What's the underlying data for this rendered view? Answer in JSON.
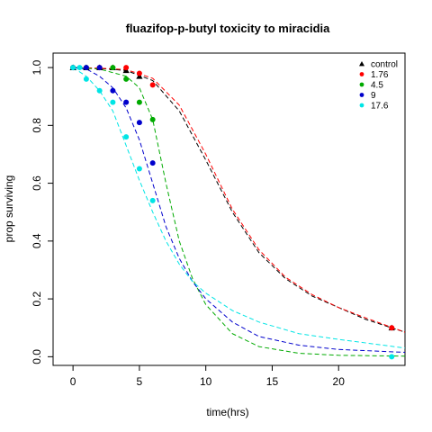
{
  "chart_data": {
    "type": "scatter",
    "title": "fluazifop-p-butyl toxicity to miracidia",
    "xlabel": "time(hrs)",
    "ylabel": "prop surviving",
    "xlim": [
      -1.5,
      25
    ],
    "ylim": [
      -0.03,
      1.05
    ],
    "xticks": [
      0,
      5,
      10,
      15,
      20
    ],
    "yticks": [
      0.0,
      0.2,
      0.4,
      0.6,
      0.8,
      1.0
    ],
    "xtick_labels": [
      "0",
      "5",
      "10",
      "15",
      "20"
    ],
    "ytick_labels": [
      "0.0",
      "0.2",
      "0.4",
      "0.6",
      "0.8",
      "1.0"
    ],
    "grid": false,
    "legend_position": "top-right",
    "series": [
      {
        "name": "control",
        "color": "#000000",
        "marker": "triangle",
        "points": [
          [
            0,
            1.0
          ],
          [
            1,
            1.0
          ],
          [
            2,
            1.0
          ],
          [
            3,
            1.0
          ],
          [
            4,
            0.99
          ],
          [
            5,
            0.97
          ],
          [
            24,
            0.1
          ]
        ],
        "curve": [
          [
            0,
            1.0
          ],
          [
            2,
            0.997
          ],
          [
            4,
            0.99
          ],
          [
            6,
            0.955
          ],
          [
            8,
            0.85
          ],
          [
            10,
            0.68
          ],
          [
            12,
            0.5
          ],
          [
            14,
            0.36
          ],
          [
            16,
            0.27
          ],
          [
            18,
            0.21
          ],
          [
            20,
            0.17
          ],
          [
            22,
            0.13
          ],
          [
            25,
            0.085
          ]
        ]
      },
      {
        "name": "1.76",
        "color": "#ff0000",
        "marker": "circle",
        "points": [
          [
            0,
            1.0
          ],
          [
            2,
            1.0
          ],
          [
            4,
            1.0
          ],
          [
            5,
            0.98
          ],
          [
            6,
            0.94
          ],
          [
            24,
            0.1
          ]
        ],
        "curve": [
          [
            0,
            1.0
          ],
          [
            2,
            0.998
          ],
          [
            4,
            0.993
          ],
          [
            6,
            0.963
          ],
          [
            8,
            0.87
          ],
          [
            10,
            0.7
          ],
          [
            12,
            0.51
          ],
          [
            14,
            0.37
          ],
          [
            16,
            0.275
          ],
          [
            18,
            0.215
          ],
          [
            20,
            0.17
          ],
          [
            22,
            0.135
          ],
          [
            25,
            0.085
          ]
        ]
      },
      {
        "name": "4.5",
        "color": "#00aa00",
        "marker": "circle",
        "points": [
          [
            0,
            1.0
          ],
          [
            1,
            1.0
          ],
          [
            3,
            1.0
          ],
          [
            4,
            0.96
          ],
          [
            5,
            0.88
          ],
          [
            6,
            0.82
          ]
        ],
        "curve": [
          [
            0,
            1.0
          ],
          [
            2,
            0.995
          ],
          [
            4,
            0.97
          ],
          [
            5,
            0.93
          ],
          [
            6,
            0.82
          ],
          [
            7,
            0.6
          ],
          [
            8,
            0.4
          ],
          [
            9,
            0.27
          ],
          [
            10,
            0.18
          ],
          [
            12,
            0.08
          ],
          [
            14,
            0.035
          ],
          [
            17,
            0.012
          ],
          [
            20,
            0.005
          ],
          [
            25,
            0.002
          ]
        ]
      },
      {
        "name": "9",
        "color": "#0000cc",
        "marker": "circle",
        "points": [
          [
            0,
            1.0
          ],
          [
            1,
            1.0
          ],
          [
            2,
            1.0
          ],
          [
            3,
            0.92
          ],
          [
            4,
            0.88
          ],
          [
            5,
            0.81
          ],
          [
            6,
            0.67
          ]
        ],
        "curve": [
          [
            0,
            1.0
          ],
          [
            1,
            0.995
          ],
          [
            2,
            0.97
          ],
          [
            3,
            0.93
          ],
          [
            4,
            0.86
          ],
          [
            5,
            0.75
          ],
          [
            6,
            0.6
          ],
          [
            7,
            0.45
          ],
          [
            8,
            0.34
          ],
          [
            9,
            0.26
          ],
          [
            10,
            0.2
          ],
          [
            12,
            0.12
          ],
          [
            14,
            0.07
          ],
          [
            17,
            0.04
          ],
          [
            20,
            0.025
          ],
          [
            25,
            0.015
          ]
        ]
      },
      {
        "name": "17.6",
        "color": "#00e5e5",
        "marker": "circle",
        "points": [
          [
            0,
            1.0
          ],
          [
            0.5,
            1.0
          ],
          [
            1,
            0.96
          ],
          [
            2,
            0.92
          ],
          [
            3,
            0.88
          ],
          [
            4,
            0.76
          ],
          [
            5,
            0.65
          ],
          [
            6,
            0.54
          ],
          [
            24,
            0.0
          ]
        ],
        "curve": [
          [
            0,
            1.0
          ],
          [
            1,
            0.97
          ],
          [
            2,
            0.92
          ],
          [
            3,
            0.85
          ],
          [
            4,
            0.73
          ],
          [
            5,
            0.61
          ],
          [
            6,
            0.5
          ],
          [
            7,
            0.4
          ],
          [
            8,
            0.32
          ],
          [
            9,
            0.26
          ],
          [
            10,
            0.22
          ],
          [
            12,
            0.16
          ],
          [
            14,
            0.12
          ],
          [
            17,
            0.08
          ],
          [
            20,
            0.06
          ],
          [
            25,
            0.03
          ]
        ]
      }
    ]
  }
}
